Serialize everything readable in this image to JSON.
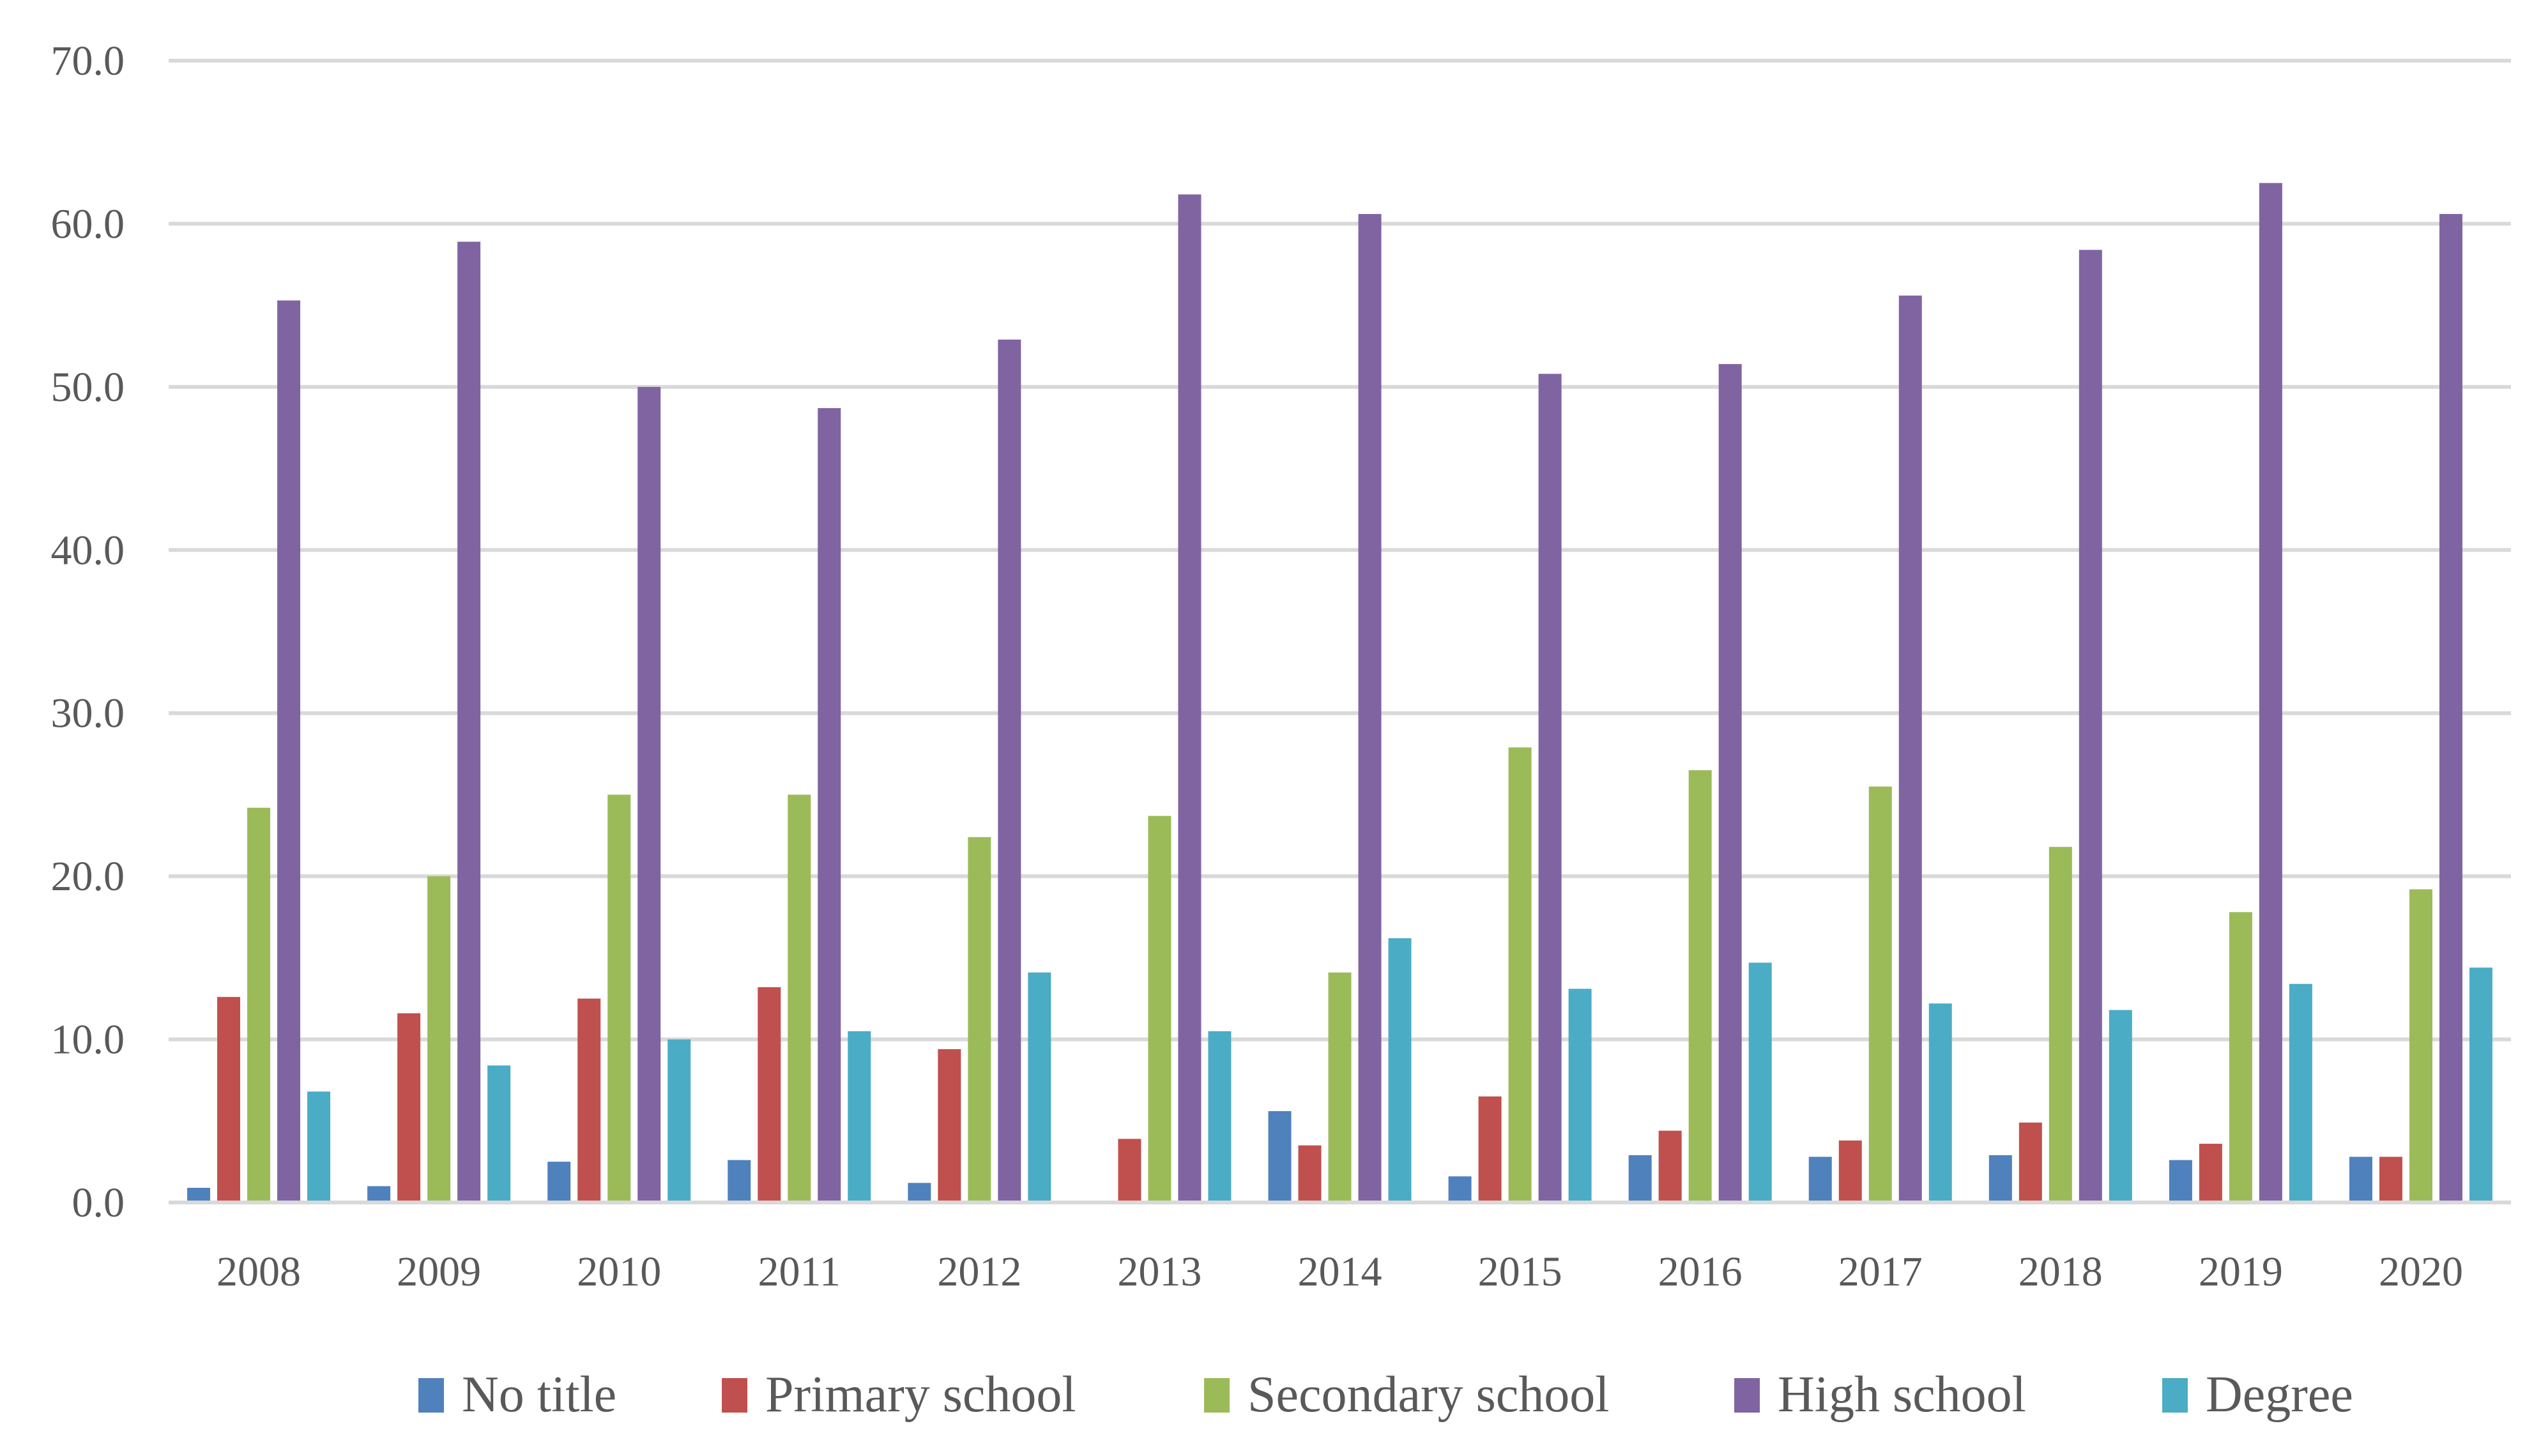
{
  "chart_data": {
    "type": "bar",
    "title": "",
    "xlabel": "",
    "ylabel": "",
    "ylim": [
      0,
      70
    ],
    "yticks": [
      "0.0",
      "10.0",
      "20.0",
      "30.0",
      "40.0",
      "50.0",
      "60.0",
      "70.0"
    ],
    "grid": true,
    "legend_position": "bottom",
    "categories": [
      "2008",
      "2009",
      "2010",
      "2011",
      "2012",
      "2013",
      "2014",
      "2015",
      "2016",
      "2017",
      "2018",
      "2019",
      "2020"
    ],
    "series": [
      {
        "name": "No title",
        "color": "#4f81bd",
        "values": [
          0.9,
          1.0,
          2.5,
          2.6,
          1.2,
          0.0,
          5.6,
          1.6,
          2.9,
          2.8,
          2.9,
          2.6,
          2.8
        ]
      },
      {
        "name": "Primary school",
        "color": "#c0504d",
        "values": [
          12.6,
          11.6,
          12.5,
          13.2,
          9.4,
          3.9,
          3.5,
          6.5,
          4.4,
          3.8,
          4.9,
          3.6,
          2.8
        ]
      },
      {
        "name": "Secondary school",
        "color": "#9bbb59",
        "values": [
          24.2,
          20.0,
          25.0,
          25.0,
          22.4,
          23.7,
          14.1,
          27.9,
          26.5,
          25.5,
          21.8,
          17.8,
          19.2
        ]
      },
      {
        "name": "High school",
        "color": "#8064a2",
        "values": [
          55.3,
          58.9,
          50.0,
          48.7,
          52.9,
          61.8,
          60.6,
          50.8,
          51.4,
          55.6,
          58.4,
          62.5,
          60.6
        ]
      },
      {
        "name": "Degree",
        "color": "#4bacc6",
        "values": [
          6.8,
          8.4,
          10.0,
          10.5,
          14.1,
          10.5,
          16.2,
          13.1,
          14.7,
          12.2,
          11.8,
          13.4,
          14.4
        ]
      }
    ]
  }
}
